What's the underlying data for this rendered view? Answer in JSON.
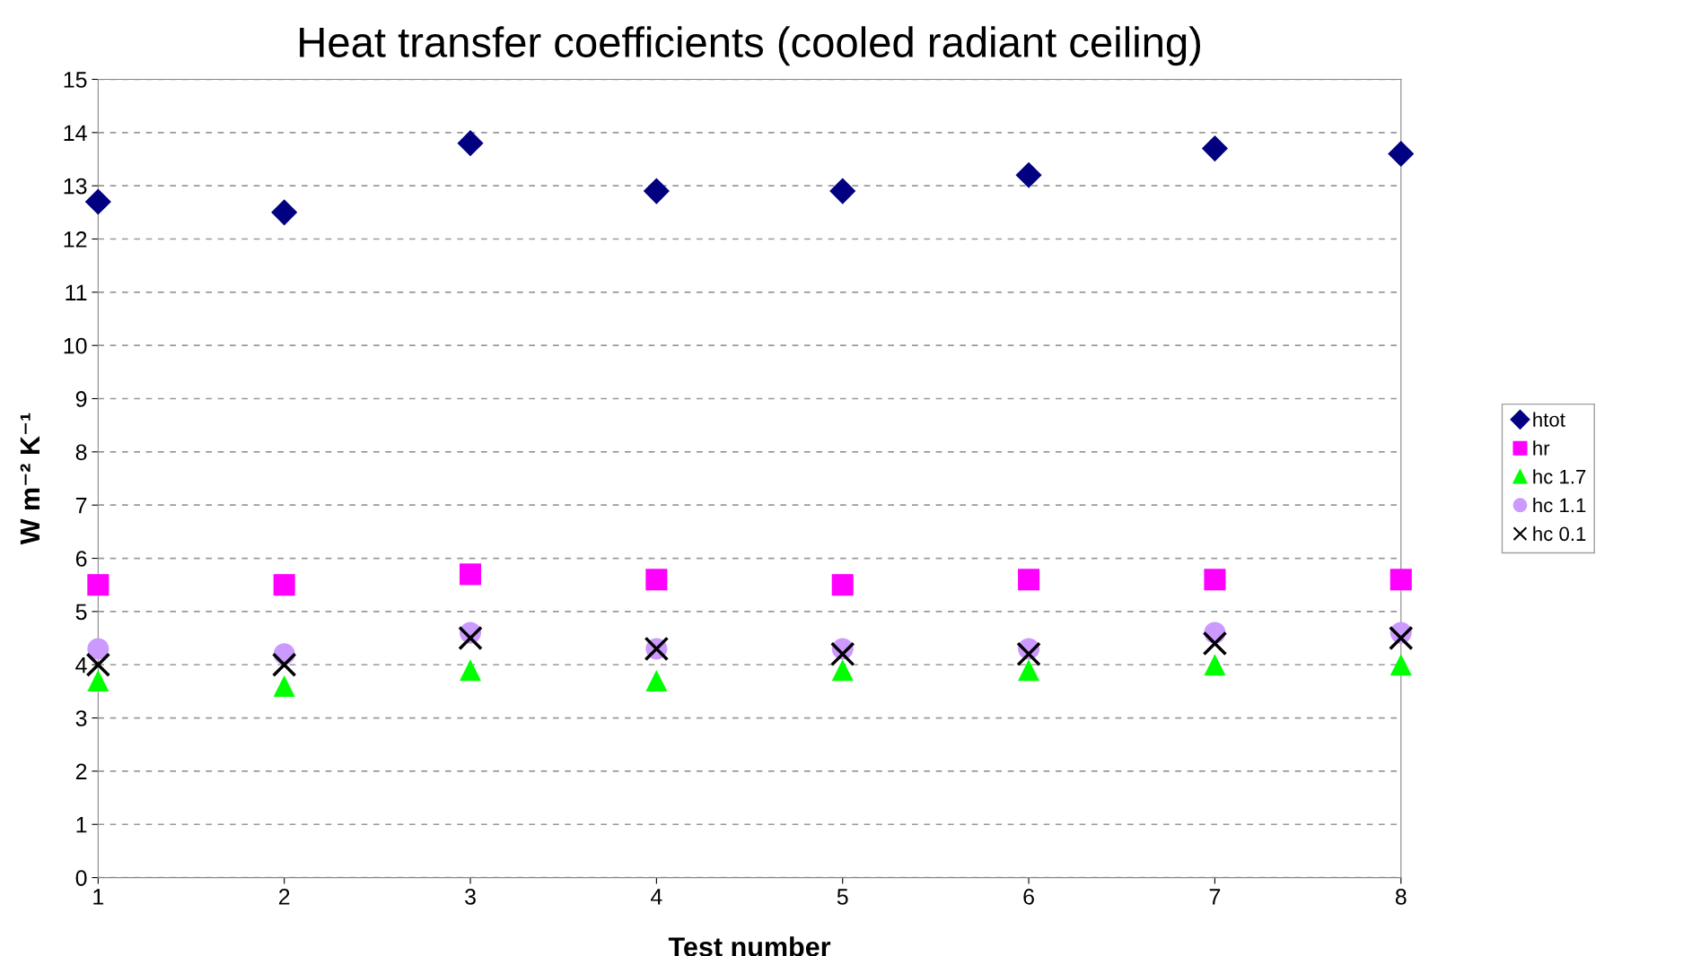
{
  "chart_data": {
    "type": "scatter",
    "title": "Heat transfer coefficients (cooled radiant ceiling)",
    "xlabel": "Test number",
    "ylabel": "W m⁻² K⁻¹",
    "x": [
      1,
      2,
      3,
      4,
      5,
      6,
      7,
      8
    ],
    "xlim": [
      1,
      8
    ],
    "xticks": [
      1,
      2,
      3,
      4,
      5,
      6,
      7,
      8
    ],
    "ylim": [
      0,
      15
    ],
    "yticks": [
      0,
      1,
      2,
      3,
      4,
      5,
      6,
      7,
      8,
      9,
      10,
      11,
      12,
      13,
      14,
      15
    ],
    "grid": "y",
    "legend": "right",
    "series": [
      {
        "name": "htot",
        "color": "#000080",
        "marker": "diamond",
        "values": [
          12.7,
          12.5,
          13.8,
          12.9,
          12.9,
          13.2,
          13.7,
          13.6
        ]
      },
      {
        "name": "hr",
        "color": "#ff00ff",
        "marker": "square",
        "values": [
          5.5,
          5.5,
          5.7,
          5.6,
          5.5,
          5.6,
          5.6,
          5.6
        ]
      },
      {
        "name": "hc 1.7",
        "color": "#00ff00",
        "marker": "triangle",
        "values": [
          3.7,
          3.6,
          3.9,
          3.7,
          3.9,
          3.9,
          4.0,
          4.0
        ]
      },
      {
        "name": "hc 1.1",
        "color": "#cc99ff",
        "marker": "circle",
        "values": [
          4.3,
          4.2,
          4.6,
          4.3,
          4.3,
          4.3,
          4.6,
          4.6
        ]
      },
      {
        "name": "hc 0.1",
        "color": "#000000",
        "marker": "cross",
        "values": [
          4.0,
          4.0,
          4.5,
          4.3,
          4.2,
          4.2,
          4.4,
          4.5
        ]
      }
    ]
  }
}
